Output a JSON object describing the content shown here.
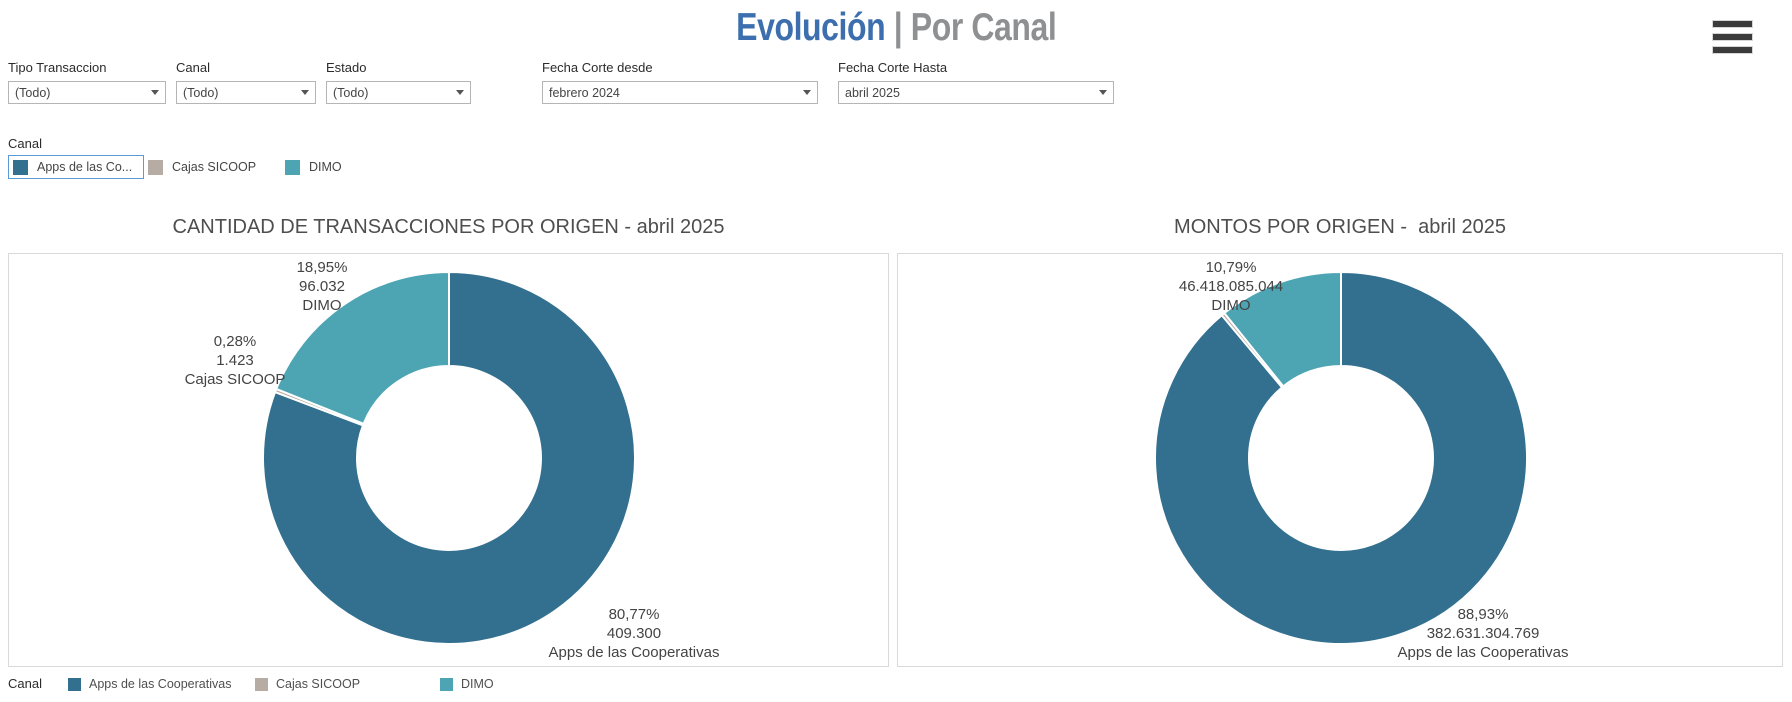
{
  "header": {
    "title_primary": "Evolución",
    "title_separator": " | ",
    "title_secondary": "Por Canal"
  },
  "colors": {
    "title_primary": "#3d6fae",
    "title_secondary": "#8e9092",
    "apps": "#33708f",
    "cajas": "#b7aca3",
    "dimo": "#4da5b4",
    "legend_selection_border": "#5b9bd5"
  },
  "filters": [
    {
      "label": "Tipo Transaccion",
      "value": "(Todo)"
    },
    {
      "label": "Canal",
      "value": "(Todo)"
    },
    {
      "label": "Estado",
      "value": "(Todo)"
    },
    {
      "label": "Fecha Corte desde",
      "value": "febrero 2024"
    },
    {
      "label": "Fecha Corte Hasta",
      "value": "abril 2025"
    }
  ],
  "canal_legend": {
    "title": "Canal",
    "items": [
      {
        "label": "Apps de las Co...",
        "color": "#33708f",
        "selected": true
      },
      {
        "label": "Cajas SICOOP",
        "color": "#b7aca3",
        "selected": false
      },
      {
        "label": "DIMO",
        "color": "#4da5b4",
        "selected": false
      }
    ]
  },
  "chart_data": [
    {
      "type": "pie",
      "subtype": "donut",
      "title": "CANTIDAD DE TRANSACCIONES POR ORIGEN - abril 2025",
      "legend_title": "Canal",
      "segments": [
        {
          "label": "Apps de las Cooperativas",
          "value": 409300,
          "value_label": "409.300",
          "pct": 80.77,
          "pct_label": "80,77%",
          "color": "#33708f"
        },
        {
          "label": "Cajas SICOOP",
          "value": 1423,
          "value_label": "1.423",
          "pct": 0.28,
          "pct_label": "0,28%",
          "color": "#b7aca3"
        },
        {
          "label": "DIMO",
          "value": 96032,
          "value_label": "96.032",
          "pct": 18.95,
          "pct_label": "18,95%",
          "color": "#4da5b4"
        }
      ]
    },
    {
      "type": "pie",
      "subtype": "donut",
      "title": "MONTOS POR ORIGEN -  abril 2025",
      "legend_title": "Canal",
      "segments": [
        {
          "label": "Apps de las Cooperativas",
          "value": 382631304769,
          "value_label": "382.631.304.769",
          "pct": 88.93,
          "pct_label": "88,93%",
          "color": "#33708f"
        },
        {
          "label": "Cajas SICOOP",
          "pct": 0.28,
          "color": "#b7aca3"
        },
        {
          "label": "DIMO",
          "value": 46418085044,
          "value_label": "46.418.085.044",
          "pct": 10.79,
          "pct_label": "10,79%",
          "color": "#4da5b4"
        }
      ]
    }
  ],
  "bottom_legend": {
    "title": "Canal",
    "items": [
      {
        "label": "Apps de las Cooperativas",
        "color": "#33708f"
      },
      {
        "label": "Cajas SICOOP",
        "color": "#b7aca3"
      },
      {
        "label": "DIMO",
        "color": "#4da5b4"
      }
    ]
  }
}
